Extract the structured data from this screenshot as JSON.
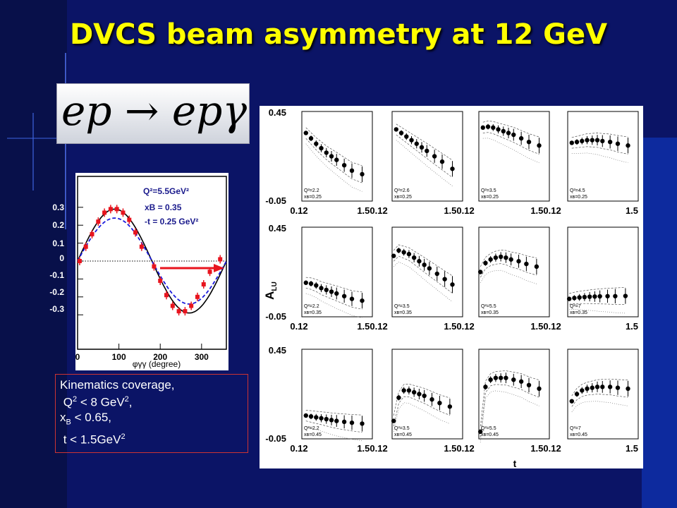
{
  "title": "DVCS beam asymmetry at 12 GeV",
  "reaction": "ep → epγ",
  "kinematics": {
    "line1": "Kinematics coverage,",
    "line2_base": "Q",
    "line2_sup": "2",
    "line2_rest": " < 8 GeV",
    "line2_sup2": "2",
    "line2_end": ",",
    "line3_base": "x",
    "line3_sub": "B",
    "line3_rest": " < 0.65,",
    "line4_base": "t < 1.5GeV",
    "line4_sup": "2"
  },
  "chart_data": [
    {
      "type": "line",
      "xlabel": "φγγ (degree)",
      "ylabel": "",
      "xlim": [
        0,
        360
      ],
      "ylim": [
        -0.38,
        0.38
      ],
      "xticks": [
        "0",
        "100",
        "200",
        "300"
      ],
      "yticks": [
        "0.3",
        "0.2",
        "0.1",
        "0",
        "-0.1",
        "-0.2",
        "-0.3"
      ],
      "annotations": [
        "Q²=5.5GeV²",
        "xB = 0.35",
        "-t = 0.25 GeV²"
      ],
      "series": [
        {
          "style": "data",
          "color": "#e8141e",
          "x": [
            5,
            20,
            35,
            50,
            65,
            80,
            95,
            110,
            125,
            140,
            155,
            185,
            200,
            215,
            230,
            245,
            260,
            275,
            290,
            305,
            320,
            345
          ],
          "y": [
            0.0,
            0.08,
            0.15,
            0.22,
            0.27,
            0.29,
            0.29,
            0.27,
            0.23,
            0.16,
            0.08,
            -0.03,
            -0.11,
            -0.19,
            -0.25,
            -0.28,
            -0.28,
            -0.25,
            -0.2,
            -0.13,
            -0.06,
            0.01
          ]
        },
        {
          "style": "solid",
          "color": "#000000",
          "name": ""
        },
        {
          "style": "dashed",
          "color": "#1a1adc",
          "name": ""
        }
      ]
    },
    {
      "type": "scatter",
      "ylabel": "A_LU",
      "xlabel": "t",
      "ylim": [
        -0.05,
        0.45
      ],
      "xlim": [
        0.12,
        1.5
      ],
      "x_tick_labels": [
        "0.12",
        "1.50.12",
        "1.50.12",
        "1.50.12",
        "1.5"
      ],
      "y_tick_labels": [
        "0.45",
        "-0.05"
      ],
      "panels": [
        {
          "row": 0,
          "col": 0,
          "q2": "Q²=2.2",
          "xb": "xʙ=0.25",
          "t": [
            0.2,
            0.3,
            0.4,
            0.5,
            0.6,
            0.7,
            0.8,
            0.95,
            1.1,
            1.3
          ],
          "a": [
            0.33,
            0.3,
            0.27,
            0.245,
            0.22,
            0.2,
            0.18,
            0.15,
            0.12,
            0.1
          ]
        },
        {
          "row": 0,
          "col": 1,
          "q2": "Q²=2.6",
          "xb": "xʙ=0.25",
          "t": [
            0.2,
            0.3,
            0.4,
            0.5,
            0.6,
            0.7,
            0.8,
            0.95,
            1.1,
            1.3
          ],
          "a": [
            0.35,
            0.33,
            0.31,
            0.29,
            0.27,
            0.25,
            0.23,
            0.2,
            0.17,
            0.13
          ]
        },
        {
          "row": 0,
          "col": 2,
          "q2": "Q²=3.5",
          "xb": "xʙ=0.25",
          "t": [
            0.2,
            0.3,
            0.4,
            0.5,
            0.6,
            0.7,
            0.8,
            0.95,
            1.1,
            1.3
          ],
          "a": [
            0.36,
            0.365,
            0.36,
            0.35,
            0.34,
            0.33,
            0.32,
            0.3,
            0.28,
            0.26
          ]
        },
        {
          "row": 0,
          "col": 3,
          "q2": "Q²=4.5",
          "xb": "xʙ=0.25",
          "t": [
            0.2,
            0.3,
            0.4,
            0.5,
            0.6,
            0.7,
            0.8,
            0.95,
            1.1,
            1.3
          ],
          "a": [
            0.275,
            0.28,
            0.285,
            0.29,
            0.29,
            0.29,
            0.285,
            0.28,
            0.27,
            0.26
          ]
        },
        {
          "row": 1,
          "col": 0,
          "q2": "Q²=2.2",
          "xb": "xʙ=0.35",
          "t": [
            0.2,
            0.3,
            0.4,
            0.5,
            0.6,
            0.7,
            0.8,
            0.95,
            1.1,
            1.3
          ],
          "a": [
            0.14,
            0.135,
            0.125,
            0.11,
            0.1,
            0.09,
            0.08,
            0.065,
            0.05,
            0.04
          ]
        },
        {
          "row": 1,
          "col": 1,
          "q2": "Q²=3.5",
          "xb": "xʙ=0.35",
          "t": [
            0.15,
            0.25,
            0.35,
            0.45,
            0.55,
            0.65,
            0.75,
            0.85,
            1.0,
            1.15,
            1.3
          ],
          "a": [
            0.29,
            0.32,
            0.31,
            0.3,
            0.28,
            0.26,
            0.24,
            0.22,
            0.19,
            0.16,
            0.13
          ]
        },
        {
          "row": 1,
          "col": 2,
          "q2": "Q²=5.5",
          "xb": "xʙ=0.35",
          "t": [
            0.15,
            0.25,
            0.35,
            0.45,
            0.55,
            0.65,
            0.75,
            0.9,
            1.05,
            1.25
          ],
          "a": [
            0.2,
            0.25,
            0.27,
            0.28,
            0.285,
            0.28,
            0.27,
            0.26,
            0.245,
            0.23
          ]
        },
        {
          "row": 1,
          "col": 3,
          "q2": "Q²=7",
          "xb": "xʙ=0.35",
          "t": [
            0.15,
            0.25,
            0.35,
            0.45,
            0.55,
            0.65,
            0.75,
            0.9,
            1.05,
            1.25
          ],
          "a": [
            0.05,
            0.055,
            0.058,
            0.06,
            0.062,
            0.063,
            0.064,
            0.065,
            0.065,
            0.066
          ]
        },
        {
          "row": 2,
          "col": 0,
          "q2": "Q²=2.2",
          "xb": "xʙ=0.45",
          "t": [
            0.2,
            0.3,
            0.4,
            0.5,
            0.6,
            0.7,
            0.8,
            0.95,
            1.1,
            1.3
          ],
          "a": [
            0.08,
            0.075,
            0.07,
            0.065,
            0.06,
            0.055,
            0.05,
            0.045,
            0.04,
            0.035
          ]
        },
        {
          "row": 2,
          "col": 1,
          "q2": "Q²=3.5",
          "xb": "xʙ=0.45",
          "t": [
            0.15,
            0.25,
            0.35,
            0.45,
            0.55,
            0.65,
            0.75,
            0.9,
            1.05,
            1.25
          ],
          "a": [
            0.05,
            0.18,
            0.22,
            0.22,
            0.21,
            0.2,
            0.19,
            0.17,
            0.15,
            0.13
          ]
        },
        {
          "row": 2,
          "col": 2,
          "q2": "Q²=5.5",
          "xb": "xʙ=0.45",
          "t": [
            0.15,
            0.25,
            0.35,
            0.45,
            0.55,
            0.65,
            0.8,
            0.95,
            1.1,
            1.3
          ],
          "a": [
            -0.01,
            0.24,
            0.28,
            0.29,
            0.29,
            0.29,
            0.28,
            0.27,
            0.25,
            0.23
          ]
        },
        {
          "row": 2,
          "col": 3,
          "q2": "Q²=7",
          "xb": "xʙ=0.45",
          "t": [
            0.2,
            0.3,
            0.4,
            0.5,
            0.6,
            0.7,
            0.8,
            0.95,
            1.1,
            1.3
          ],
          "a": [
            0.16,
            0.2,
            0.22,
            0.23,
            0.235,
            0.24,
            0.24,
            0.24,
            0.235,
            0.23
          ]
        }
      ]
    }
  ]
}
